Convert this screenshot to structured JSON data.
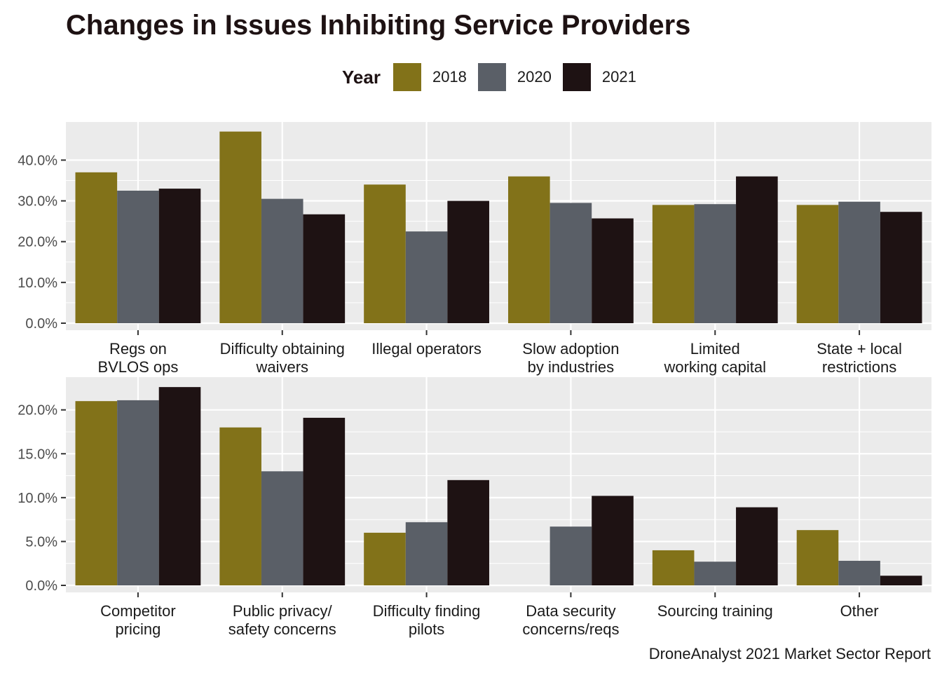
{
  "title": "Changes in Issues Inhibiting Service Providers",
  "caption": "DroneAnalyst 2021 Market Sector Report",
  "legend": {
    "title": "Year",
    "items": [
      {
        "label": "2018",
        "color": "#827219"
      },
      {
        "label": "2020",
        "color": "#5a5f67"
      },
      {
        "label": "2021",
        "color": "#1e1213"
      }
    ]
  },
  "chart_data": [
    {
      "type": "bar",
      "categories": [
        [
          "Regs on",
          "BVLOS ops"
        ],
        [
          "Difficulty obtaining",
          "waivers"
        ],
        [
          "Illegal operators"
        ],
        [
          "Slow adoption",
          "by industries"
        ],
        [
          "Limited",
          "working capital"
        ],
        [
          "State + local",
          "restrictions"
        ]
      ],
      "series": [
        {
          "name": "2018",
          "values": [
            37.0,
            47.0,
            34.0,
            36.0,
            29.0,
            29.0
          ]
        },
        {
          "name": "2020",
          "values": [
            32.5,
            30.5,
            22.5,
            29.5,
            29.2,
            29.8
          ]
        },
        {
          "name": "2021",
          "values": [
            33.0,
            26.7,
            30.0,
            25.7,
            36.0,
            27.3
          ]
        }
      ],
      "yticks": [
        "0.0%",
        "10.0%",
        "20.0%",
        "30.0%",
        "40.0%"
      ],
      "ytick_values": [
        0,
        10,
        20,
        30,
        40
      ],
      "ylim": [
        0,
        49.35
      ],
      "xlabel": "",
      "ylabel": "",
      "grid": true
    },
    {
      "type": "bar",
      "categories": [
        [
          "Competitor",
          "pricing"
        ],
        [
          "Public privacy/",
          "safety concerns"
        ],
        [
          "Difficulty finding",
          "pilots"
        ],
        [
          "Data security",
          "concerns/reqs"
        ],
        [
          "Sourcing training"
        ],
        [
          "Other"
        ]
      ],
      "series": [
        {
          "name": "2018",
          "values": [
            21.0,
            18.0,
            6.0,
            0.0,
            4.0,
            6.3
          ]
        },
        {
          "name": "2020",
          "values": [
            21.1,
            13.0,
            7.2,
            6.7,
            2.7,
            2.8
          ]
        },
        {
          "name": "2021",
          "values": [
            22.6,
            19.1,
            12.0,
            10.2,
            8.9,
            1.1
          ]
        }
      ],
      "yticks": [
        "0.0%",
        "5.0%",
        "10.0%",
        "15.0%",
        "20.0%"
      ],
      "ytick_values": [
        0,
        5,
        10,
        15,
        20
      ],
      "ylim": [
        0,
        23.73
      ],
      "xlabel": "",
      "ylabel": "",
      "grid": true
    }
  ]
}
